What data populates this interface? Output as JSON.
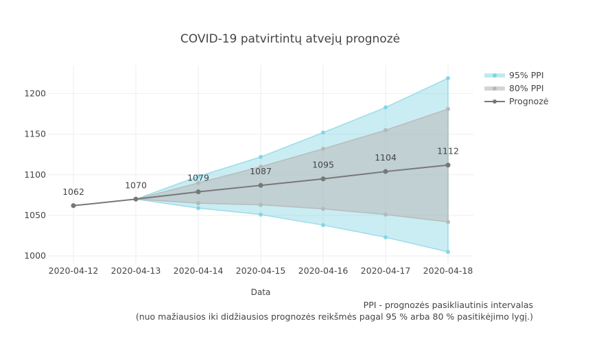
{
  "chart_data": {
    "type": "line",
    "title": "COVID-19 patvirtintų atvejų prognozė",
    "xlabel": "Data",
    "ylabel": "",
    "x": [
      "2020-04-12",
      "2020-04-13",
      "2020-04-14",
      "2020-04-15",
      "2020-04-16",
      "2020-04-17",
      "2020-04-18"
    ],
    "ylim": [
      990,
      1235
    ],
    "yticks": [
      1000,
      1050,
      1100,
      1150,
      1200
    ],
    "grid": true,
    "legend_position": "top-right",
    "series": [
      {
        "name": "95% PPI",
        "type": "band",
        "color": "#7fd3e3",
        "x": [
          "2020-04-13",
          "2020-04-14",
          "2020-04-15",
          "2020-04-16",
          "2020-04-17",
          "2020-04-18"
        ],
        "upper": [
          1070,
          1098,
          1122,
          1152,
          1183,
          1219
        ],
        "lower": [
          1070,
          1059,
          1051,
          1038,
          1023,
          1005
        ]
      },
      {
        "name": "80% PPI",
        "type": "band",
        "color": "#b8b8b8",
        "x": [
          "2020-04-13",
          "2020-04-14",
          "2020-04-15",
          "2020-04-16",
          "2020-04-17",
          "2020-04-18"
        ],
        "upper": [
          1070,
          1090,
          1110,
          1132,
          1155,
          1181
        ],
        "lower": [
          1070,
          1065,
          1063,
          1058,
          1051,
          1042
        ]
      },
      {
        "name": "Prognozė",
        "type": "line",
        "color": "#777777",
        "values": [
          1062,
          1070,
          1079,
          1087,
          1095,
          1104,
          1112
        ],
        "labels": [
          "1062",
          "1070",
          "1079",
          "1087",
          "1095",
          "1104",
          "1112"
        ]
      }
    ],
    "annotations": [
      "PPI - prognozės pasikliautinis intervalas",
      "(nuo mažiausios iki didžiausios prognozės reikšmės pagal 95 % arba 80 % pasitikėjimo lygį.)"
    ]
  }
}
